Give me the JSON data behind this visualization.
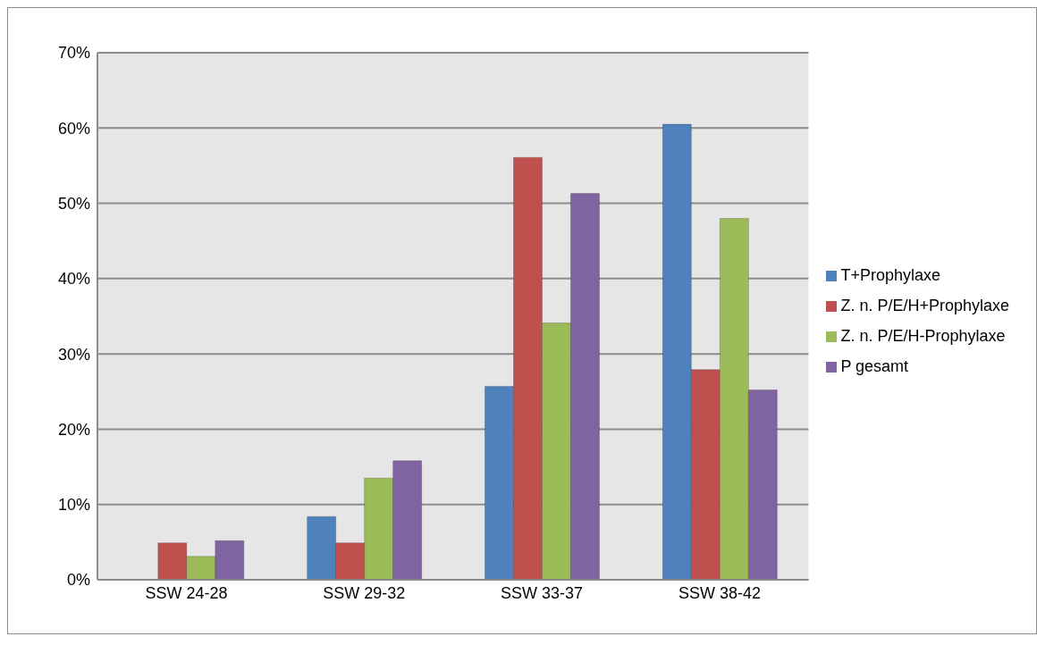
{
  "chart_data": {
    "type": "bar",
    "categories": [
      "SSW 24-28",
      "SSW 29-32",
      "SSW 33-37",
      "SSW 38-42"
    ],
    "series": [
      {
        "name": "T+Prophylaxe",
        "color": "#4f81bd",
        "values": [
          0,
          8.4,
          25.7,
          60.5
        ]
      },
      {
        "name": "Z. n. P/E/H+Prophylaxe",
        "color": "#c0504d",
        "values": [
          4.9,
          4.9,
          56.1,
          27.9
        ]
      },
      {
        "name": "Z. n. P/E/H-Prophylaxe",
        "color": "#9bbb59",
        "values": [
          3.1,
          13.5,
          34.1,
          48.0
        ]
      },
      {
        "name": "P gesamt",
        "color": "#8064a2",
        "values": [
          5.2,
          15.8,
          51.3,
          25.2
        ]
      }
    ],
    "ylim": [
      0,
      70
    ],
    "yticks": [
      {
        "value": 0,
        "label": "0%"
      },
      {
        "value": 10,
        "label": "10%"
      },
      {
        "value": 20,
        "label": "20%"
      },
      {
        "value": 30,
        "label": "30%"
      },
      {
        "value": 40,
        "label": "40%"
      },
      {
        "value": 50,
        "label": "50%"
      },
      {
        "value": 60,
        "label": "60%"
      },
      {
        "value": 70,
        "label": "70%"
      }
    ],
    "grid": "y",
    "legend": "right"
  }
}
